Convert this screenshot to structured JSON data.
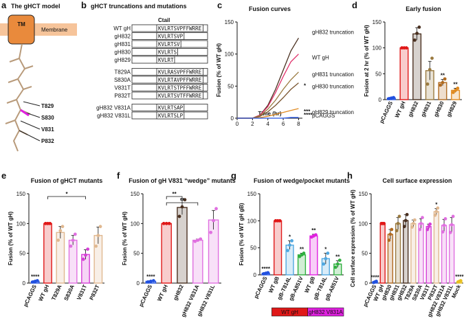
{
  "panel_a": {
    "panel": "a",
    "title": "The gHCT model",
    "tm": "TM",
    "membrane": "Membrane",
    "residues": [
      "T829",
      "S830",
      "V831",
      "P832"
    ],
    "residue_colors": [
      "#d9b48f",
      "#e020e0",
      "#e020e0",
      "#d9b48f"
    ]
  },
  "panel_b": {
    "panel": "b",
    "title": "gHCT truncations and mutations",
    "header": "Ctail",
    "rows": [
      {
        "name": "WT gH",
        "seq": "KVLRTSVPFFWRRE",
        "color": "#e01818"
      },
      {
        "name": "gH832",
        "seq": "KVLRTSVP",
        "color": "#222222"
      },
      {
        "name": "gH831",
        "seq": "KVLRTSV",
        "color": "#222222"
      },
      {
        "name": "gH830",
        "seq": "KVLRTS",
        "color": "#c07a20"
      },
      {
        "name": "gH829",
        "seq": "KVLRT",
        "color": "#e08a20"
      },
      {
        "name": "T829A",
        "seq": "KVLRASVPFFWRRE",
        "color": "#222222"
      },
      {
        "name": "S830A",
        "seq": "KVLRTAVPFFWRRE",
        "color": "#222222"
      },
      {
        "name": "V831T",
        "seq": "KVLRTSTPFFWRRE",
        "color": "#222222"
      },
      {
        "name": "P832T",
        "seq": "KVLRTSVTFFWRRE",
        "color": "#222222"
      },
      {
        "name": "gH832 V831A",
        "seq": "KVLRTSAP",
        "color": "#222222"
      },
      {
        "name": "gH832 V831L",
        "seq": "KVLRTSLP",
        "color": "#222222"
      }
    ]
  },
  "chart_data": [
    {
      "type": "line",
      "panel": "c",
      "title": "Fusion curves",
      "xlabel": "Time (hr)",
      "ylabel": "Fusion (% of WT gH)",
      "x": [
        0,
        1,
        2,
        3,
        4,
        5,
        6,
        7,
        8
      ],
      "xlim": [
        0,
        8.5
      ],
      "xticks": [
        0,
        2,
        4,
        6,
        8
      ],
      "ylim": [
        0,
        150
      ],
      "yticks": [
        0,
        50,
        100,
        150
      ],
      "series": [
        {
          "name": "gH832 truncation",
          "color": "#4a3020",
          "values": [
            0,
            0,
            0,
            5,
            20,
            45,
            75,
            105,
            125
          ]
        },
        {
          "name": "WT gH",
          "color": "#e0306a",
          "values": [
            0,
            0,
            0,
            5,
            18,
            40,
            65,
            88,
            100
          ]
        },
        {
          "name": "gH831 truncation",
          "color": "#9a7a40",
          "values": [
            0,
            0,
            0,
            4,
            14,
            28,
            45,
            60,
            72
          ]
        },
        {
          "name": "gH830 truncation",
          "color": "#7a5530",
          "values": [
            0,
            0,
            0,
            3,
            10,
            20,
            32,
            45,
            55
          ],
          "stars": "*"
        },
        {
          "name": "gH829 truncation",
          "color": "#e08a20",
          "values": [
            0,
            0,
            0,
            1,
            3,
            6,
            9,
            12,
            15
          ],
          "stars": "***"
        },
        {
          "name": "pCAGGS",
          "color": "#2050e0",
          "values": [
            0,
            0,
            0,
            0,
            0,
            0,
            0,
            1,
            1
          ],
          "stars": "****"
        }
      ]
    },
    {
      "type": "bar",
      "panel": "d",
      "title": "Early fusion",
      "ylabel": "Fusion at 2 hr (% of WT gH)",
      "ylim": [
        0,
        150
      ],
      "yticks": [
        0,
        50,
        100,
        150
      ],
      "categories": [
        "pCAGGS",
        "WT gH",
        "gH832",
        "gH831",
        "gH830",
        "gH829"
      ],
      "colors": [
        "#2050e0",
        "#e01818",
        "#4a3020",
        "#9a7a40",
        "#b06a20",
        "#e08a20"
      ],
      "values": [
        3,
        100,
        127,
        56,
        33,
        18
      ],
      "errors": [
        1,
        1,
        12,
        18,
        6,
        4
      ],
      "points": [
        [
          2,
          3,
          4
        ],
        [
          100,
          100,
          100
        ],
        [
          115,
          128,
          140
        ],
        [
          30,
          58,
          80
        ],
        [
          28,
          33,
          40
        ],
        [
          14,
          18,
          22
        ]
      ],
      "stars": [
        null,
        null,
        null,
        null,
        "**",
        "**"
      ]
    },
    {
      "type": "bar",
      "panel": "e",
      "title": "Fusion of gHCT mutants",
      "ylabel": "Fusion (% of WT gH)",
      "ylim": [
        0,
        150
      ],
      "yticks": [
        0,
        50,
        100,
        150
      ],
      "categories": [
        "pCAGGS",
        "WT gH",
        "T829A",
        "S830A",
        "V831T",
        "P832T"
      ],
      "colors": [
        "#2050e0",
        "#e01818",
        "#e0b890",
        "#e070e0",
        "#d63fd6",
        "#e0b890"
      ],
      "values": [
        3,
        100,
        85,
        72,
        48,
        80
      ],
      "errors": [
        1,
        1,
        10,
        8,
        8,
        14
      ],
      "points": [
        [
          2,
          3,
          4
        ],
        [
          100,
          100,
          100
        ],
        [
          72,
          88,
          95
        ],
        [
          62,
          72,
          82
        ],
        [
          40,
          47,
          57
        ],
        [
          62,
          80,
          95
        ]
      ],
      "stars": [
        "****",
        null,
        null,
        null,
        null,
        null
      ],
      "bracket_stars": [
        null,
        null,
        null,
        null,
        "*",
        null
      ]
    },
    {
      "type": "bar",
      "panel": "f",
      "title": "Fusion of gH V831 “wedge” mutants",
      "ylabel": "Fusion (% of WT gH)",
      "ylim": [
        0,
        150
      ],
      "yticks": [
        0,
        50,
        100,
        150
      ],
      "categories": [
        "pCAGGS",
        "WT gH",
        "gH832",
        "gH832 V831A",
        "gH832 V831L"
      ],
      "colors": [
        "#2050e0",
        "#e01818",
        "#4a3020",
        "#e070e0",
        "#e070e0"
      ],
      "values": [
        3,
        100,
        127,
        72,
        106
      ],
      "errors": [
        1,
        1,
        12,
        2,
        16
      ],
      "points": [
        [
          2,
          3,
          4
        ],
        [
          100,
          100,
          100
        ],
        [
          112,
          128,
          140
        ],
        [
          70,
          72,
          74
        ],
        [
          85,
          105,
          125
        ]
      ],
      "stars": [
        "****",
        null,
        null,
        null,
        null
      ],
      "bracket_stars": [
        null,
        null,
        "**",
        "**",
        null
      ]
    },
    {
      "type": "bar",
      "panel": "g",
      "title": "Fusion of wedge/pocket mutants",
      "ylabel": "Fusion (% of WT gH gB)",
      "ylim": [
        0,
        150
      ],
      "yticks": [
        0,
        50,
        100,
        150
      ],
      "categories": [
        "pCAGGS",
        "WT gB",
        "gB-T814L",
        "gB-A851V",
        "WT gB",
        "gB-T814L",
        "gB-A851V"
      ],
      "colors": [
        "#2050e0",
        "#e01818",
        "#50a8e0",
        "#30b040",
        "#e020e0",
        "#50a8e0",
        "#30b040"
      ],
      "values": [
        3,
        100,
        55,
        37,
        72,
        30,
        20
      ],
      "errors": [
        1,
        1,
        8,
        3,
        3,
        10,
        6
      ],
      "points": [
        [
          2,
          3,
          4
        ],
        [
          100,
          100,
          100
        ],
        [
          45,
          55,
          63
        ],
        [
          34,
          37,
          40
        ],
        [
          70,
          72,
          74
        ],
        [
          20,
          30,
          40
        ],
        [
          14,
          20,
          27
        ]
      ],
      "stars": [
        "****",
        null,
        "*",
        "**",
        "**",
        "*",
        "**"
      ],
      "groups": [
        {
          "label": "WT gH",
          "color": "#e01818",
          "span": 3
        },
        {
          "label": "gH832 V831A",
          "color": "#e020e0",
          "span": 3
        }
      ]
    },
    {
      "type": "bar",
      "panel": "h",
      "title": "Cell surface expression",
      "ylabel": "Cell surface expression (% of WT gH)",
      "ylim": [
        0,
        150
      ],
      "yticks": [
        0,
        50,
        100,
        150
      ],
      "categories": [
        "pCAGGS",
        "WT gH",
        "gH830",
        "gH831",
        "gH832",
        "T829A",
        "S830A",
        "V831T",
        "P832T",
        "gH832 V831A",
        "gH832 V831L",
        "Mock"
      ],
      "colors": [
        "#2050e0",
        "#e01818",
        "#b06a20",
        "#9a7a40",
        "#4a3020",
        "#e0b890",
        "#e070e0",
        "#d63fd6",
        "#e0b890",
        "#e070e0",
        "#e070e0",
        "#e8c020"
      ],
      "values": [
        2,
        100,
        82,
        100,
        105,
        100,
        100,
        95,
        120,
        97,
        98,
        3
      ],
      "errors": [
        1,
        1,
        8,
        10,
        10,
        6,
        8,
        4,
        5,
        10,
        12,
        1
      ],
      "points": [
        [
          1,
          2,
          3
        ],
        [
          100,
          100,
          100
        ],
        [
          72,
          82,
          90
        ],
        [
          88,
          100,
          112
        ],
        [
          95,
          105,
          115
        ],
        [
          94,
          100,
          106
        ],
        [
          90,
          100,
          110
        ],
        [
          90,
          95,
          99
        ],
        [
          114,
          120,
          126
        ],
        [
          86,
          97,
          108
        ],
        [
          85,
          98,
          112
        ],
        [
          2,
          3,
          4
        ]
      ],
      "stars": [
        "****",
        null,
        null,
        null,
        null,
        null,
        null,
        null,
        "*",
        null,
        null,
        "****"
      ]
    }
  ]
}
